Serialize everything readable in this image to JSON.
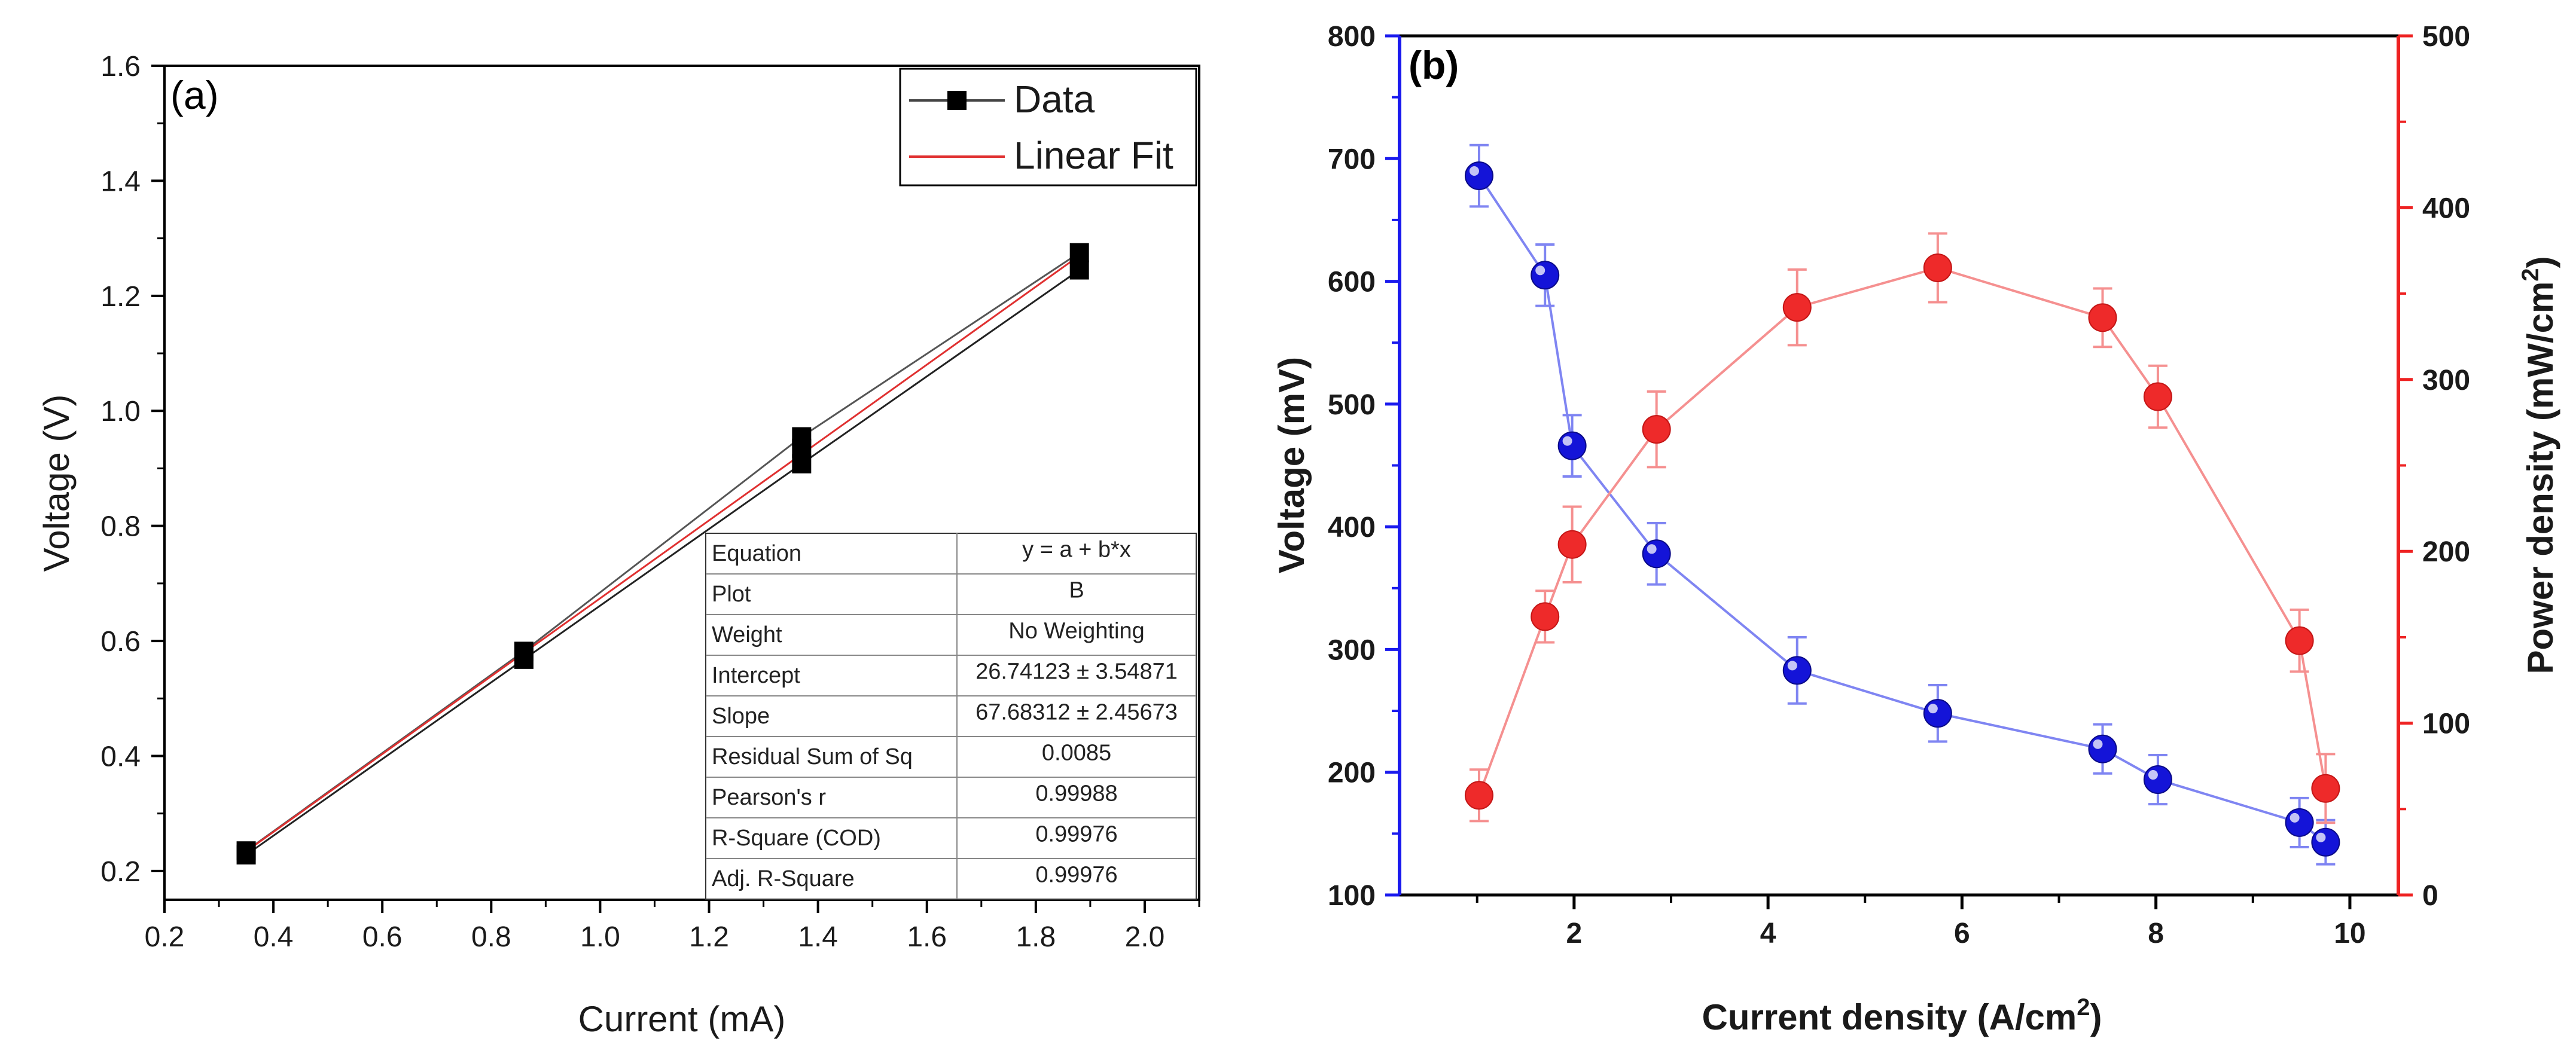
{
  "chart_data": [
    {
      "panel_label": "(a)",
      "type": "scatter",
      "xlabel": "Current (mA)",
      "ylabel": "Voltage (V)",
      "xlim": [
        0.2,
        2.1
      ],
      "ylim": [
        0.15,
        1.6
      ],
      "x_ticks": [
        "0.2",
        "0.4",
        "0.6",
        "0.8",
        "1.0",
        "1.2",
        "1.4",
        "1.6",
        "1.8",
        "2.0"
      ],
      "y_ticks": [
        "0.2",
        "0.4",
        "0.6",
        "0.8",
        "1.0",
        "1.2",
        "1.4",
        "1.6"
      ],
      "series": [
        {
          "name": "Data",
          "color": "#000000",
          "style": "line+square",
          "x": [
            0.35,
            0.35,
            0.86,
            0.86,
            1.37,
            1.37,
            1.37,
            1.88,
            1.88
          ],
          "y": [
            0.228,
            0.235,
            0.568,
            0.582,
            0.908,
            0.935,
            0.955,
            1.245,
            1.275
          ]
        },
        {
          "name": "Linear Fit",
          "color": "#e03030",
          "style": "line",
          "x": [
            0.35,
            1.88
          ],
          "y": [
            0.234,
            1.27
          ]
        }
      ],
      "legend": [
        {
          "label": "Data"
        },
        {
          "label": "Linear Fit"
        }
      ],
      "fit_table": [
        [
          "Equation",
          "y = a + b*x"
        ],
        [
          "Plot",
          "B"
        ],
        [
          "Weight",
          "No Weighting"
        ],
        [
          "Intercept",
          "26.74123 ± 3.54871"
        ],
        [
          "Slope",
          "67.68312 ± 2.45673"
        ],
        [
          "Residual Sum of Sq",
          "0.0085"
        ],
        [
          "Pearson's r",
          "0.99988"
        ],
        [
          "R-Square (COD)",
          "0.99976"
        ],
        [
          "Adj. R-Square",
          "0.99976"
        ]
      ]
    },
    {
      "panel_label": "(b)",
      "type": "line",
      "xlabel": "Current density (A/cm",
      "xlabel_sup": "2",
      "xlabel_end": ")",
      "ylabel_left": "Voltage (mV)",
      "ylabel_right": "Power density (mW/cm",
      "ylabel_right_sup": "2",
      "ylabel_right_end": ")",
      "xlim": [
        0.2,
        10.5
      ],
      "ylim_left": [
        100,
        800
      ],
      "ylim_right": [
        0,
        500
      ],
      "x_ticks": [
        "2",
        "4",
        "6",
        "8",
        "10"
      ],
      "y_left_ticks": [
        "100",
        "200",
        "300",
        "400",
        "500",
        "600",
        "700",
        "800"
      ],
      "y_right_ticks": [
        "0",
        "100",
        "200",
        "300",
        "400",
        "500"
      ],
      "series": [
        {
          "name": "Voltage",
          "axis": "left",
          "color": "#1a1aee",
          "x": [
            1.02,
            1.7,
            1.98,
            2.85,
            4.3,
            5.75,
            7.45,
            8.02,
            9.48,
            9.75
          ],
          "y": [
            686,
            605,
            466,
            378,
            283,
            248,
            219,
            194,
            159,
            143
          ],
          "err": [
            25,
            25,
            25,
            25,
            27,
            23,
            20,
            20,
            20,
            18
          ]
        },
        {
          "name": "Power density",
          "axis": "right",
          "color": "#ee2222",
          "x": [
            1.02,
            1.7,
            1.98,
            2.85,
            4.3,
            5.75,
            7.45,
            8.02,
            9.48,
            9.75
          ],
          "y": [
            58,
            162,
            204,
            271,
            342,
            365,
            336,
            290,
            148,
            62
          ],
          "err": [
            15,
            15,
            22,
            22,
            22,
            20,
            17,
            18,
            18,
            20
          ]
        }
      ]
    }
  ]
}
